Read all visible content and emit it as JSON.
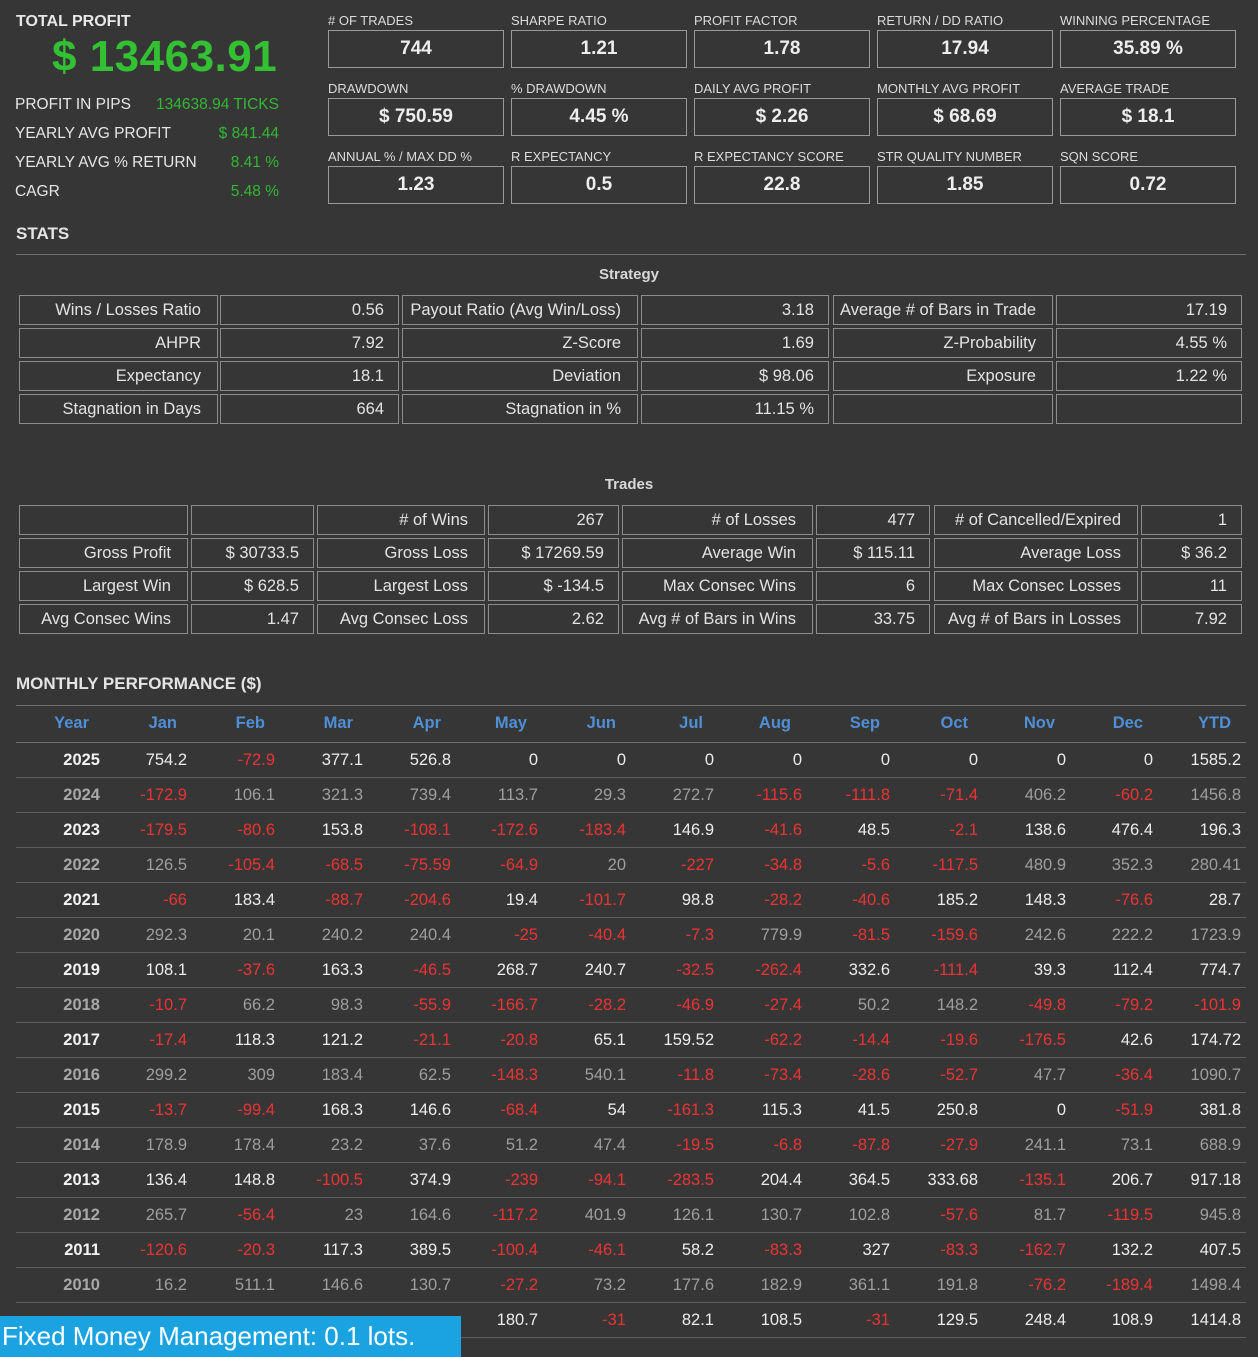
{
  "summary": {
    "total_profit_label": "TOTAL PROFIT",
    "total_profit_value": "$ 13463.91",
    "rows": [
      {
        "label": "PROFIT IN PIPS",
        "value": "134638.94 TICKS"
      },
      {
        "label": "YEARLY AVG PROFIT",
        "value": "$ 841.44"
      },
      {
        "label": "YEARLY AVG % RETURN",
        "value": "8.41 %"
      },
      {
        "label": "CAGR",
        "value": "5.48 %"
      }
    ]
  },
  "metrics": [
    [
      {
        "label": "# OF TRADES",
        "value": "744"
      },
      {
        "label": "SHARPE RATIO",
        "value": "1.21"
      },
      {
        "label": "PROFIT FACTOR",
        "value": "1.78"
      },
      {
        "label": "RETURN / DD RATIO",
        "value": "17.94"
      },
      {
        "label": "WINNING PERCENTAGE",
        "value": "35.89 %"
      }
    ],
    [
      {
        "label": "DRAWDOWN",
        "value": "$ 750.59"
      },
      {
        "label": "% DRAWDOWN",
        "value": "4.45 %"
      },
      {
        "label": "DAILY AVG PROFIT",
        "value": "$ 2.26"
      },
      {
        "label": "MONTHLY AVG PROFIT",
        "value": "$ 68.69"
      },
      {
        "label": "AVERAGE TRADE",
        "value": "$ 18.1"
      }
    ],
    [
      {
        "label": "ANNUAL % / MAX DD %",
        "value": "1.23"
      },
      {
        "label": "R EXPECTANCY",
        "value": "0.5"
      },
      {
        "label": "R EXPECTANCY SCORE",
        "value": "22.8"
      },
      {
        "label": "STR QUALITY NUMBER",
        "value": "1.85"
      },
      {
        "label": "SQN SCORE",
        "value": "0.72"
      }
    ]
  ],
  "stats": {
    "title": "STATS",
    "strategy_title": "Strategy",
    "strategy_rows": [
      [
        "Wins / Losses Ratio",
        "0.56",
        "Payout Ratio (Avg Win/Loss)",
        "3.18",
        "Average # of Bars in Trade",
        "17.19"
      ],
      [
        "AHPR",
        "7.92",
        "Z-Score",
        "1.69",
        "Z-Probability",
        "4.55 %"
      ],
      [
        "Expectancy",
        "18.1",
        "Deviation",
        "$ 98.06",
        "Exposure",
        "1.22 %"
      ],
      [
        "Stagnation in Days",
        "664",
        "Stagnation in %",
        "11.15 %",
        "",
        ""
      ]
    ],
    "trades_title": "Trades",
    "trades_rows": [
      [
        "",
        "",
        "# of Wins",
        "267",
        "# of Losses",
        "477",
        "# of Cancelled/Expired",
        "1"
      ],
      [
        "Gross Profit",
        "$ 30733.5",
        "Gross Loss",
        "$ 17269.59",
        "Average Win",
        "$ 115.11",
        "Average Loss",
        "$ 36.2"
      ],
      [
        "Largest Win",
        "$ 628.5",
        "Largest Loss",
        "$ -134.5",
        "Max Consec Wins",
        "6",
        "Max Consec Losses",
        "11"
      ],
      [
        "Avg Consec Wins",
        "1.47",
        "Avg Consec Loss",
        "2.62",
        "Avg # of Bars in Wins",
        "33.75",
        "Avg # of Bars in Losses",
        "7.92"
      ]
    ]
  },
  "monthly": {
    "title": "MONTHLY PERFORMANCE ($)",
    "headers": [
      "Year",
      "Jan",
      "Feb",
      "Mar",
      "Apr",
      "May",
      "Jun",
      "Jul",
      "Aug",
      "Sep",
      "Oct",
      "Nov",
      "Dec",
      "YTD"
    ],
    "rows": [
      [
        "2025",
        "754.2",
        "-72.9",
        "377.1",
        "526.8",
        "0",
        "0",
        "0",
        "0",
        "0",
        "0",
        "0",
        "0",
        "1585.2"
      ],
      [
        "2024",
        "-172.9",
        "106.1",
        "321.3",
        "739.4",
        "113.7",
        "29.3",
        "272.7",
        "-115.6",
        "-111.8",
        "-71.4",
        "406.2",
        "-60.2",
        "1456.8"
      ],
      [
        "2023",
        "-179.5",
        "-80.6",
        "153.8",
        "-108.1",
        "-172.6",
        "-183.4",
        "146.9",
        "-41.6",
        "48.5",
        "-2.1",
        "138.6",
        "476.4",
        "196.3"
      ],
      [
        "2022",
        "126.5",
        "-105.4",
        "-68.5",
        "-75.59",
        "-64.9",
        "20",
        "-227",
        "-34.8",
        "-5.6",
        "-117.5",
        "480.9",
        "352.3",
        "280.41"
      ],
      [
        "2021",
        "-66",
        "183.4",
        "-88.7",
        "-204.6",
        "19.4",
        "-101.7",
        "98.8",
        "-28.2",
        "-40.6",
        "185.2",
        "148.3",
        "-76.6",
        "28.7"
      ],
      [
        "2020",
        "292.3",
        "20.1",
        "240.2",
        "240.4",
        "-25",
        "-40.4",
        "-7.3",
        "779.9",
        "-81.5",
        "-159.6",
        "242.6",
        "222.2",
        "1723.9"
      ],
      [
        "2019",
        "108.1",
        "-37.6",
        "163.3",
        "-46.5",
        "268.7",
        "240.7",
        "-32.5",
        "-262.4",
        "332.6",
        "-111.4",
        "39.3",
        "112.4",
        "774.7"
      ],
      [
        "2018",
        "-10.7",
        "66.2",
        "98.3",
        "-55.9",
        "-166.7",
        "-28.2",
        "-46.9",
        "-27.4",
        "50.2",
        "148.2",
        "-49.8",
        "-79.2",
        "-101.9"
      ],
      [
        "2017",
        "-17.4",
        "118.3",
        "121.2",
        "-21.1",
        "-20.8",
        "65.1",
        "159.52",
        "-62.2",
        "-14.4",
        "-19.6",
        "-176.5",
        "42.6",
        "174.72"
      ],
      [
        "2016",
        "299.2",
        "309",
        "183.4",
        "62.5",
        "-148.3",
        "540.1",
        "-11.8",
        "-73.4",
        "-28.6",
        "-52.7",
        "47.7",
        "-36.4",
        "1090.7"
      ],
      [
        "2015",
        "-13.7",
        "-99.4",
        "168.3",
        "146.6",
        "-68.4",
        "54",
        "-161.3",
        "115.3",
        "41.5",
        "250.8",
        "0",
        "-51.9",
        "381.8"
      ],
      [
        "2014",
        "178.9",
        "178.4",
        "23.2",
        "37.6",
        "51.2",
        "47.4",
        "-19.5",
        "-6.8",
        "-87.8",
        "-27.9",
        "241.1",
        "73.1",
        "688.9"
      ],
      [
        "2013",
        "136.4",
        "148.8",
        "-100.5",
        "374.9",
        "-239",
        "-94.1",
        "-283.5",
        "204.4",
        "364.5",
        "333.68",
        "-135.1",
        "206.7",
        "917.18"
      ],
      [
        "2012",
        "265.7",
        "-56.4",
        "23",
        "164.6",
        "-117.2",
        "401.9",
        "126.1",
        "130.7",
        "102.8",
        "-57.6",
        "81.7",
        "-119.5",
        "945.8"
      ],
      [
        "2011",
        "-120.6",
        "-20.3",
        "117.3",
        "389.5",
        "-100.4",
        "-46.1",
        "58.2",
        "-83.3",
        "327",
        "-83.3",
        "-162.7",
        "132.2",
        "407.5"
      ],
      [
        "2010",
        "16.2",
        "511.1",
        "146.6",
        "130.7",
        "-27.2",
        "73.2",
        "177.6",
        "182.9",
        "361.1",
        "191.8",
        "-76.2",
        "-189.4",
        "1498.4"
      ],
      [
        "",
        "",
        "",
        "",
        "",
        "180.7",
        "-31",
        "82.1",
        "108.5",
        "-31",
        "129.5",
        "248.4",
        "108.9",
        "1414.8"
      ]
    ]
  },
  "banner": {
    "text": "Fixed Money Management: 0.1 lots."
  }
}
